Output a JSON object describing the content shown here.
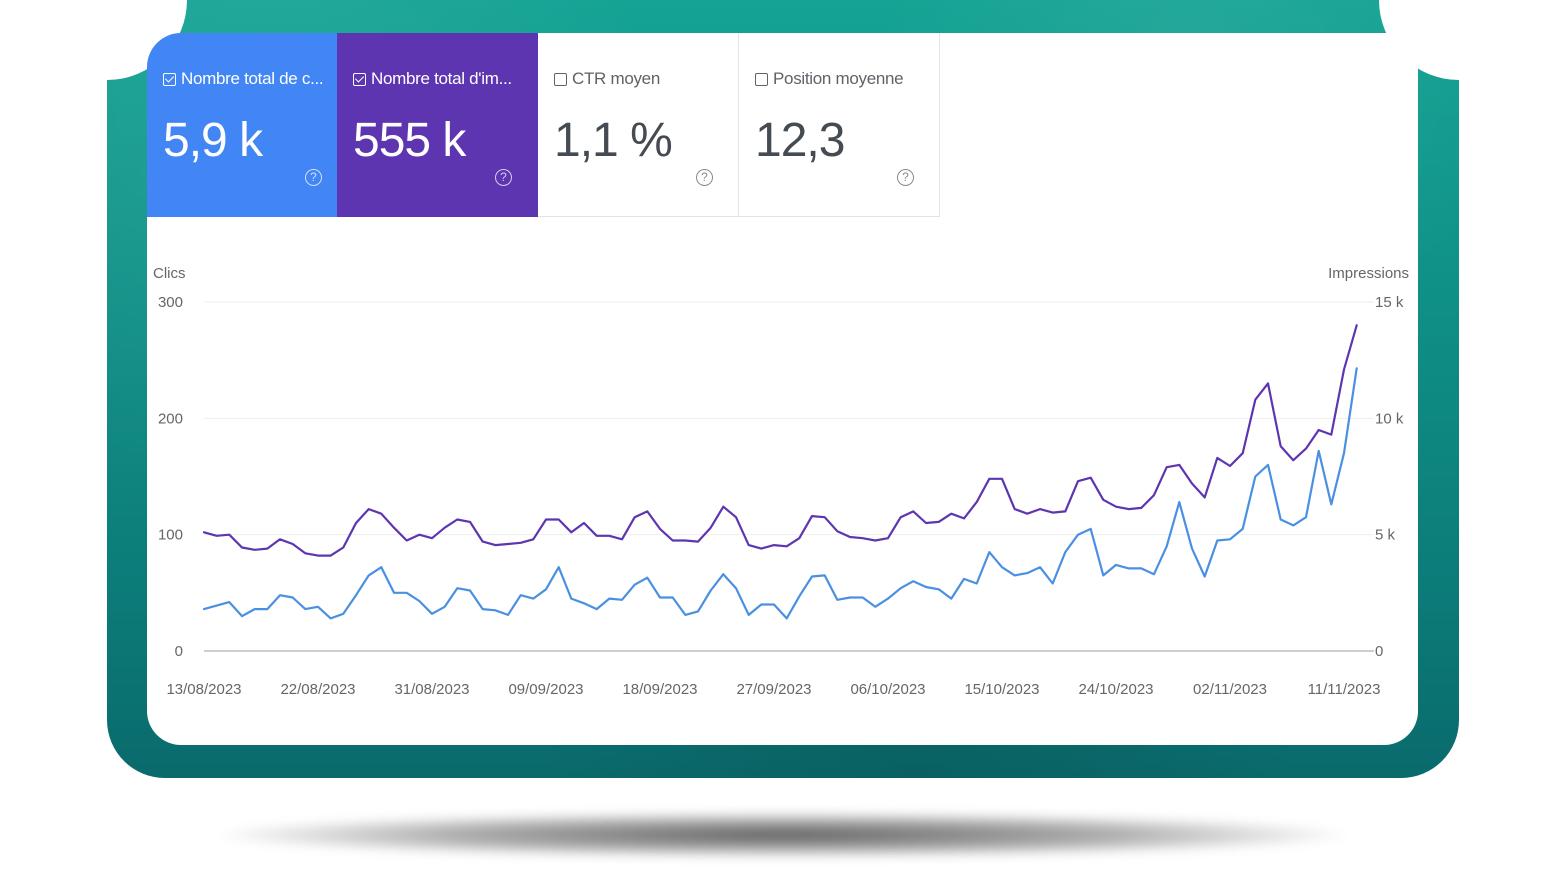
{
  "metrics": {
    "clicks": {
      "label": "Nombre total de c...",
      "value": "5,9 k",
      "checked": true,
      "color": "#4285f4"
    },
    "impressions": {
      "label": "Nombre total d'im...",
      "value": "555 k",
      "checked": true,
      "color": "#5e35b1"
    },
    "ctr": {
      "label": "CTR moyen",
      "value": "1,1 %",
      "checked": false
    },
    "position": {
      "label": "Position moyenne",
      "value": "12,3",
      "checked": false
    },
    "help_icon": "help-circle-icon",
    "help_glyph": "?"
  },
  "chart_data": {
    "type": "line",
    "y_left_label": "Clics",
    "y_right_label": "Impressions",
    "y_left_ticks": [
      "0",
      "100",
      "200",
      "300"
    ],
    "y_right_ticks": [
      "0",
      "5 k",
      "10 k",
      "15 k"
    ],
    "ylim_left": [
      0,
      300
    ],
    "ylim_right": [
      0,
      15000
    ],
    "x_tick_labels": [
      "13/08/2023",
      "22/08/2023",
      "31/08/2023",
      "09/09/2023",
      "18/09/2023",
      "27/09/2023",
      "06/10/2023",
      "15/10/2023",
      "24/10/2023",
      "02/11/2023",
      "11/11/2023"
    ],
    "x_start": "13/08/2023",
    "x_end": "12/11/2023",
    "grid": true,
    "series": [
      {
        "axis": "right",
        "color": "#5e35b1",
        "values": [
          5100,
          4950,
          5000,
          4450,
          4350,
          4400,
          4800,
          4600,
          4200,
          4100,
          4100,
          4450,
          5500,
          6100,
          5900,
          5300,
          4750,
          5000,
          4850,
          5300,
          5650,
          5550,
          4700,
          4550,
          4600,
          4650,
          4800,
          5650,
          5650,
          5100,
          5500,
          4950,
          4950,
          4800,
          5750,
          6000,
          5250,
          4750,
          4750,
          4700,
          5300,
          6200,
          5750,
          4550,
          4400,
          4550,
          4500,
          4850,
          5800,
          5750,
          5150,
          4900,
          4850,
          4750,
          4850,
          5750,
          6000,
          5500,
          5550,
          5900,
          5700,
          6400,
          7400,
          7400,
          6100,
          5900,
          6100,
          5950,
          6000,
          7300,
          7450,
          6500,
          6200,
          6100,
          6150,
          6700,
          7900,
          8000,
          7200,
          6600,
          8300,
          7950,
          8500,
          10800,
          11500,
          8800,
          8200,
          8700,
          9500,
          9300,
          12100,
          14000
        ]
      },
      {
        "axis": "left",
        "color": "#4a90e2",
        "values": [
          36,
          39,
          42,
          30,
          36,
          36,
          48,
          46,
          36,
          38,
          28,
          32,
          48,
          65,
          72,
          50,
          50,
          43,
          32,
          38,
          54,
          52,
          36,
          35,
          31,
          48,
          45,
          53,
          72,
          45,
          41,
          36,
          45,
          44,
          57,
          63,
          46,
          46,
          31,
          34,
          52,
          66,
          54,
          31,
          40,
          40,
          28,
          47,
          64,
          65,
          44,
          46,
          46,
          38,
          45,
          54,
          60,
          55,
          53,
          45,
          62,
          58,
          85,
          72,
          65,
          67,
          72,
          58,
          85,
          100,
          105,
          65,
          74,
          71,
          71,
          66,
          90,
          128,
          88,
          64,
          95,
          96,
          105,
          150,
          160,
          113,
          108,
          115,
          172,
          126,
          170,
          243
        ]
      }
    ]
  }
}
